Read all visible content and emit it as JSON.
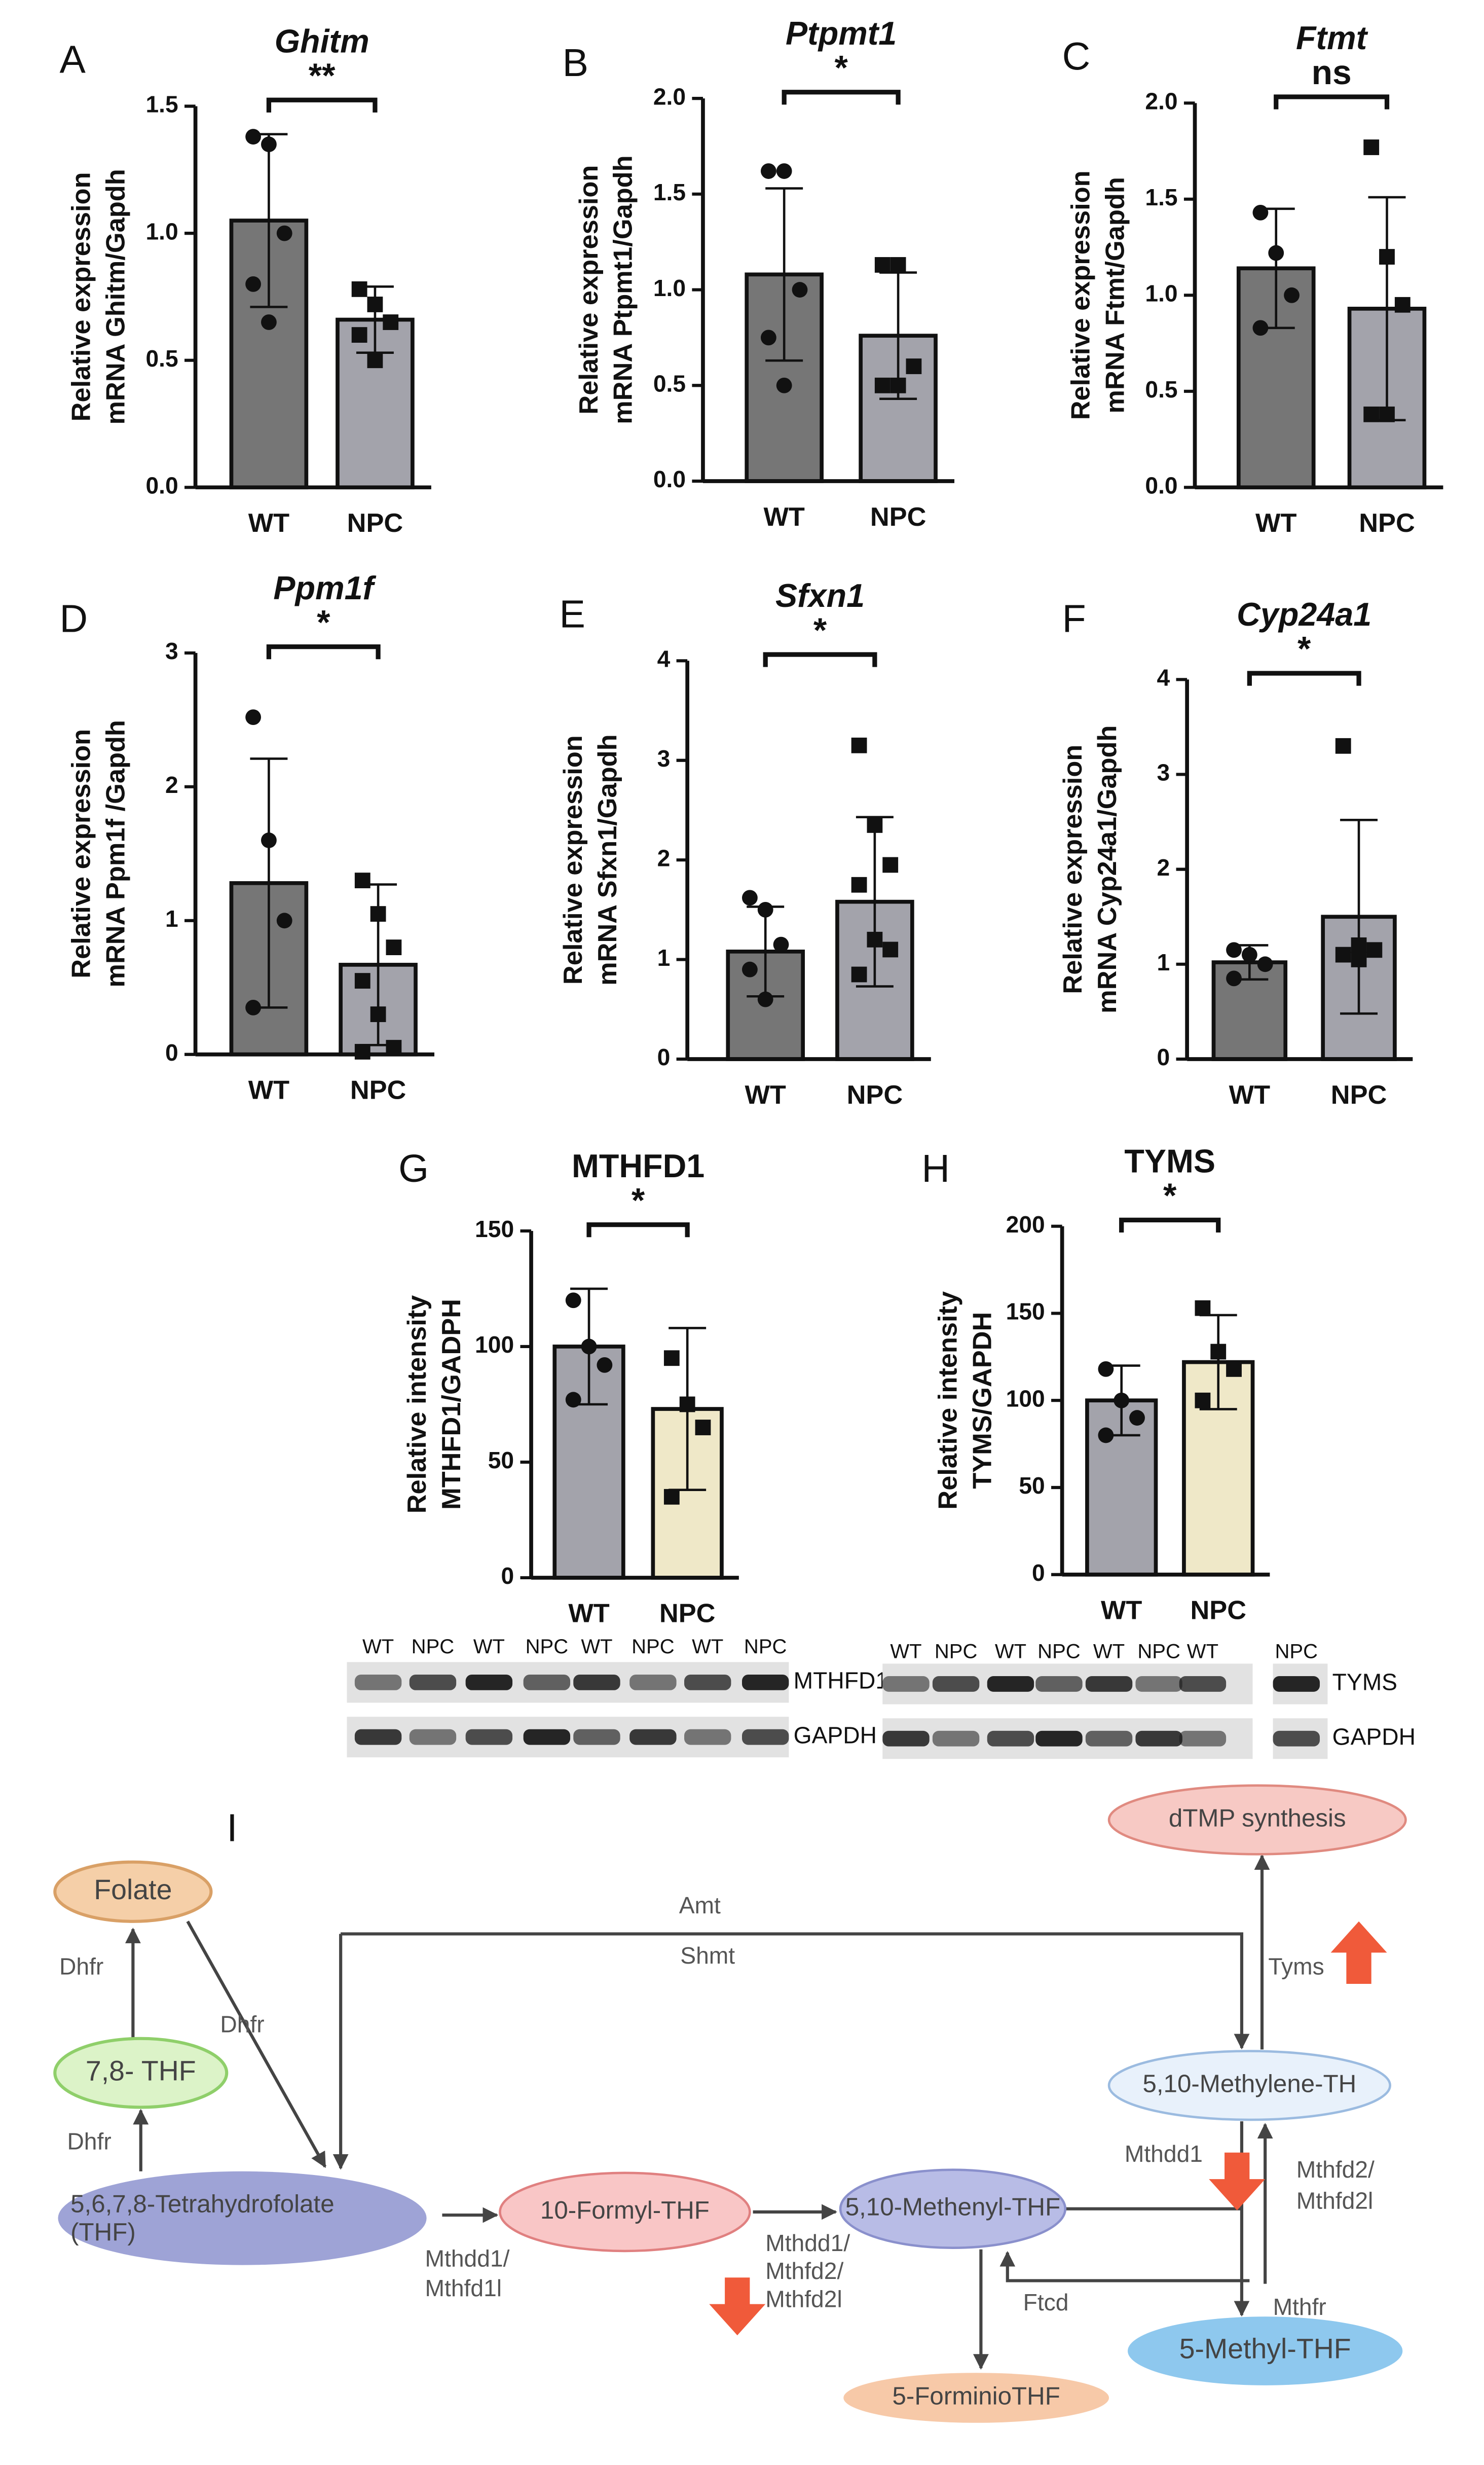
{
  "chart_data": [
    {
      "type": "bar",
      "panel": "A",
      "title": "Ghitm",
      "title_style": "italic",
      "significance": "**",
      "ylabel": [
        "Relative expression",
        "mRNA Ghitm/Gapdh"
      ],
      "categories": [
        "WT",
        "NPC"
      ],
      "values": [
        1.05,
        0.66
      ],
      "errors": [
        0.34,
        0.13
      ],
      "points": [
        [
          1.38,
          1.35,
          1.0,
          0.8,
          0.65
        ],
        [
          0.78,
          0.72,
          0.65,
          0.6,
          0.5
        ]
      ],
      "colors": [
        "#767676",
        "#a3a3ab"
      ],
      "markers": [
        "circle",
        "square"
      ],
      "ylim": [
        0,
        1.5
      ],
      "yticks": [
        {
          "value": 0,
          "label": "0.0"
        },
        0.5,
        {
          "value": 1,
          "label": "1.0"
        },
        1.5
      ]
    },
    {
      "type": "bar",
      "panel": "B",
      "title": "Ptpmt1",
      "title_style": "italic",
      "significance": "*",
      "ylabel": [
        "Relative expression",
        "mRNA Ptpmt1/Gapdh"
      ],
      "categories": [
        "WT",
        "NPC"
      ],
      "values": [
        1.08,
        0.76
      ],
      "errors": [
        0.45,
        0.33
      ],
      "points": [
        [
          1.62,
          1.62,
          1.0,
          0.75,
          0.5
        ],
        [
          1.13,
          1.13,
          0.6,
          0.5,
          0.5
        ]
      ],
      "colors": [
        "#767676",
        "#a3a3ab"
      ],
      "markers": [
        "circle",
        "square"
      ],
      "ylim": [
        0,
        2
      ],
      "yticks": [
        {
          "value": 0,
          "label": "0.0"
        },
        0.5,
        {
          "value": 1,
          "label": "1.0"
        },
        1.5,
        {
          "value": 2,
          "label": "2.0"
        }
      ]
    },
    {
      "type": "bar",
      "panel": "C",
      "title": "Ftmt",
      "title_style": "italic",
      "significance": "ns",
      "ylabel": [
        "Relative expression",
        "mRNA Ftmt/Gapdh"
      ],
      "categories": [
        "WT",
        "NPC"
      ],
      "values": [
        1.14,
        0.93
      ],
      "errors": [
        0.31,
        0.58
      ],
      "points": [
        [
          1.43,
          1.22,
          1.0,
          0.83
        ],
        [
          1.77,
          1.2,
          0.95,
          0.38,
          0.38
        ]
      ],
      "colors": [
        "#767676",
        "#a3a3ab"
      ],
      "markers": [
        "circle",
        "square"
      ],
      "ylim": [
        0,
        2
      ],
      "yticks": [
        {
          "value": 0,
          "label": "0.0"
        },
        0.5,
        {
          "value": 1,
          "label": "1.0"
        },
        1.5,
        {
          "value": 2,
          "label": "2.0"
        }
      ]
    },
    {
      "type": "bar",
      "panel": "D",
      "title": "Ppm1f",
      "title_style": "italic",
      "significance": "*",
      "ylabel": [
        "Relative expression",
        "mRNA Ppm1f /Gapdh"
      ],
      "categories": [
        "WT",
        "NPC"
      ],
      "values": [
        1.28,
        0.67
      ],
      "errors": [
        0.93,
        0.6
      ],
      "points": [
        [
          2.52,
          1.6,
          1.0,
          0.35
        ],
        [
          1.3,
          1.05,
          0.8,
          0.55,
          0.3,
          0.05,
          0.02
        ]
      ],
      "colors": [
        "#767676",
        "#a3a3ab"
      ],
      "markers": [
        "circle",
        "square"
      ],
      "ylim": [
        0,
        3
      ],
      "yticks": [
        0,
        1,
        2,
        3
      ]
    },
    {
      "type": "bar",
      "panel": "E",
      "title": "Sfxn1",
      "title_style": "italic",
      "significance": "*",
      "ylabel": [
        "Relative expression",
        "mRNA Sfxn1/Gapdh"
      ],
      "categories": [
        "WT",
        "NPC"
      ],
      "values": [
        1.08,
        1.58
      ],
      "errors": [
        0.45,
        0.85
      ],
      "points": [
        [
          1.62,
          1.5,
          1.15,
          0.9,
          0.6
        ],
        [
          3.15,
          2.35,
          1.95,
          1.75,
          1.2,
          1.1,
          0.85
        ]
      ],
      "colors": [
        "#767676",
        "#a3a3ab"
      ],
      "markers": [
        "circle",
        "square"
      ],
      "ylim": [
        0,
        4
      ],
      "yticks": [
        0,
        1,
        2,
        3,
        4
      ]
    },
    {
      "type": "bar",
      "panel": "F",
      "title": "Cyp24a1",
      "title_style": "italic",
      "significance": "*",
      "ylabel": [
        "Relative expression",
        "mRNA Cyp24a1/Gapdh"
      ],
      "categories": [
        "WT",
        "NPC"
      ],
      "values": [
        1.02,
        1.5
      ],
      "errors": [
        0.18,
        1.02
      ],
      "points": [
        [
          1.15,
          1.1,
          1.0,
          0.85
        ],
        [
          3.3,
          1.2,
          1.15,
          1.1,
          1.05
        ]
      ],
      "colors": [
        "#767676",
        "#a3a3ab"
      ],
      "markers": [
        "circle",
        "square"
      ],
      "ylim": [
        0,
        4
      ],
      "yticks": [
        0,
        1,
        2,
        3,
        4
      ]
    },
    {
      "type": "bar",
      "panel": "G",
      "title": "MTHFD1",
      "title_style": "normal",
      "significance": "*",
      "ylabel": [
        "Relative intensity",
        "MTHFD1/GADPH"
      ],
      "categories": [
        "WT",
        "NPC"
      ],
      "values": [
        100,
        73
      ],
      "errors": [
        25,
        35
      ],
      "points": [
        [
          120,
          100,
          92,
          77
        ],
        [
          95,
          75,
          65,
          35
        ]
      ],
      "colors": [
        "#a3a3ab",
        "#efe8c8"
      ],
      "markers": [
        "circle",
        "square"
      ],
      "ylim": [
        0,
        150
      ],
      "yticks": [
        0,
        50,
        100,
        150
      ]
    },
    {
      "type": "bar",
      "panel": "H",
      "title": "TYMS",
      "title_style": "normal",
      "significance": "*",
      "ylabel": [
        "Relative intensity",
        "TYMS/GAPDH"
      ],
      "categories": [
        "WT",
        "NPC"
      ],
      "values": [
        100,
        122
      ],
      "errors": [
        20,
        27
      ],
      "points": [
        [
          118,
          100,
          90,
          80
        ],
        [
          153,
          128,
          118,
          100
        ]
      ],
      "colors": [
        "#a3a3ab",
        "#efe8c8"
      ],
      "markers": [
        "circle",
        "square"
      ],
      "ylim": [
        0,
        200
      ],
      "yticks": [
        0,
        50,
        100,
        150,
        200
      ]
    }
  ],
  "blots": [
    {
      "lanes": [
        "WT",
        "NPC",
        "WT",
        "NPC",
        "WT",
        "NPC",
        "WT",
        "NPC"
      ],
      "bands": [
        "MTHFD1",
        "GAPDH"
      ]
    },
    {
      "lanes": [
        "WT",
        "NPC",
        "WT",
        "NPC",
        "WT",
        "NPC",
        "WT",
        "NPC"
      ],
      "bands": [
        "TYMS",
        "GAPDH"
      ]
    }
  ],
  "diagram": {
    "panel": "I",
    "nodes": {
      "folate": "Folate",
      "dhf": "7,8- THF",
      "thf": [
        "5,6,7,8-Tetrahydrofolate",
        "(THF)"
      ],
      "formyl": "10-Formyl-THF",
      "methenyl": "5,10-Methenyl-THF",
      "methylene": "5,10-Methylene-TH",
      "dtmp": "dTMP synthesis",
      "methyl": "5-Methyl-THF",
      "forminio": "5-ForminioTHF"
    },
    "enzymes": {
      "dhfr1": "Dhfr",
      "dhfr2": "Dhfr",
      "dhfr3": "Dhfr",
      "amt": "Amt",
      "shmt": "Shmt",
      "mthfd1l": [
        "Mthdd1/",
        "Mthfd1l"
      ],
      "mthfd2": [
        "Mthdd1/",
        "Mthfd2/",
        "Mthfd2l"
      ],
      "ftcd": "Ftcd",
      "mthdd1": "Mthdd1",
      "mthfd2b": [
        "Mthfd2/",
        "Mthfd2l"
      ],
      "mthfr": "Mthfr",
      "tyms": "Tyms"
    }
  }
}
